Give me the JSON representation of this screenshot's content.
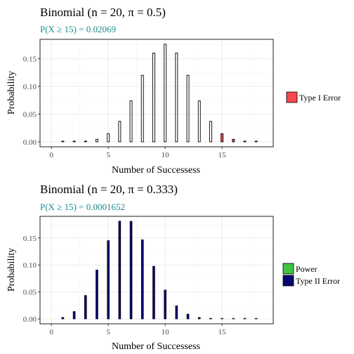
{
  "chart_data": [
    {
      "type": "bar",
      "title": "Binomial (n = 20, π = 0.5)",
      "subtitle": "P(X ≥ 15) = 0.02069",
      "xlabel": "Number of Successess",
      "ylabel": "Probability",
      "xlim": [
        -1,
        19.5
      ],
      "ylim": [
        -0.009,
        0.185
      ],
      "x_ticks": [
        0,
        5,
        10,
        15
      ],
      "y_ticks": [
        0.0,
        0.05,
        0.1,
        0.15
      ],
      "y_tick_labels": [
        "0.00",
        "0.05",
        "0.10",
        "0.15"
      ],
      "grid": true,
      "legend_position": "right",
      "bar_style": "outline",
      "x": [
        1,
        2,
        3,
        4,
        5,
        6,
        7,
        8,
        9,
        10,
        11,
        12,
        13,
        14,
        15,
        16,
        17,
        18
      ],
      "values": [
        2e-05,
        0.0002,
        0.0011,
        0.0046,
        0.0148,
        0.037,
        0.0739,
        0.1201,
        0.1602,
        0.1762,
        0.1602,
        0.1201,
        0.0739,
        0.037,
        0.0148,
        0.0046,
        0.0011,
        0.0002
      ],
      "category": [
        "none",
        "none",
        "none",
        "none",
        "none",
        "none",
        "none",
        "none",
        "none",
        "none",
        "none",
        "none",
        "none",
        "none",
        "Type I Error",
        "Type I Error",
        "Type I Error",
        "Type I Error"
      ],
      "legend": [
        {
          "label": "Type I Error",
          "key": "Type I Error",
          "color": "#f8484c"
        }
      ]
    },
    {
      "type": "bar",
      "title": "Binomial (n = 20, π = 0.333)",
      "subtitle": "P(X ≥ 15) = 0.0001652",
      "xlabel": "Number of Successess",
      "ylabel": "Probability",
      "xlim": [
        -1,
        19.5
      ],
      "ylim": [
        -0.009,
        0.19
      ],
      "x_ticks": [
        0,
        5,
        10,
        15
      ],
      "y_ticks": [
        0.0,
        0.05,
        0.1,
        0.15
      ],
      "y_tick_labels": [
        "0.00",
        "0.05",
        "0.10",
        "0.15"
      ],
      "grid": true,
      "legend_position": "right",
      "bar_style": "filled",
      "x": [
        1,
        2,
        3,
        4,
        5,
        6,
        7,
        8,
        9,
        10,
        11,
        12,
        13,
        14,
        15,
        16,
        17,
        18
      ],
      "values": [
        0.0029,
        0.0138,
        0.0436,
        0.0908,
        0.1451,
        0.1812,
        0.1809,
        0.1467,
        0.0976,
        0.0536,
        0.0243,
        0.0091,
        0.0028,
        0.0007,
        0.00015,
        2e-05,
        0.0,
        0.0
      ],
      "category": [
        "Type II Error",
        "Type II Error",
        "Type II Error",
        "Type II Error",
        "Type II Error",
        "Type II Error",
        "Type II Error",
        "Type II Error",
        "Type II Error",
        "Type II Error",
        "Type II Error",
        "Type II Error",
        "Type II Error",
        "Type II Error",
        "Power",
        "Power",
        "Power",
        "Power"
      ],
      "legend": [
        {
          "label": "Power",
          "key": "Power",
          "color": "#3ec43e"
        },
        {
          "label": "Type II Error",
          "key": "Type II Error",
          "color": "#060670"
        }
      ]
    }
  ],
  "colors": {
    "subtitle": "#1a8a8a",
    "panel_border": "#333333",
    "grid_major": "#ebebeb",
    "grid_minor": "#f5f5f5",
    "bar_outline": "#000000",
    "type1_fill": "#f8484c",
    "power_fill": "#3ec43e",
    "type2_fill": "#060670"
  }
}
